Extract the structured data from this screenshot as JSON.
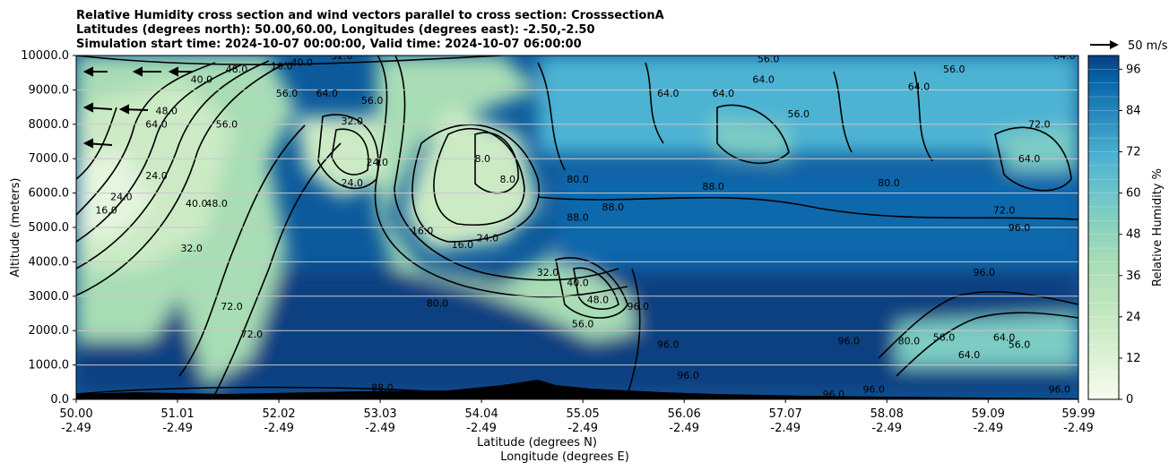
{
  "chart_data": {
    "type": "heatmap",
    "title_lines": [
      "Relative Humidity cross section and wind vectors parallel to cross section: CrosssectionA",
      "Latitudes (degrees north): 50.00,60.00, Longitudes (degrees east): -2.50,-2.50",
      "Simulation start time: 2024-10-07 00:00:00, Valid time: 2024-10-07 06:00:00"
    ],
    "ylabel": "Altitude (meters)",
    "xlabel_lines": [
      "Latitude (degrees N)",
      "Longitude (degrees E)"
    ],
    "colorbar_label": "Relative Humidity %",
    "quiver_key_label": "50 m/s",
    "ylim": [
      0,
      10000
    ],
    "xlim": [
      50.0,
      59.99
    ],
    "y_ticks": [
      0,
      1000,
      2000,
      3000,
      4000,
      5000,
      6000,
      7000,
      8000,
      9000,
      10000
    ],
    "y_tick_labels": [
      "0.0",
      "1000.0",
      "2000.0",
      "3000.0",
      "4000.0",
      "5000.0",
      "6000.0",
      "7000.0",
      "8000.0",
      "9000.0",
      "10000.0"
    ],
    "x_ticks": [
      50.0,
      51.01,
      52.02,
      53.03,
      54.04,
      55.05,
      56.06,
      57.07,
      58.08,
      59.09,
      59.99
    ],
    "x_tick_labels": [
      "50.00",
      "51.01",
      "52.02",
      "53.03",
      "54.04",
      "55.05",
      "56.06",
      "57.07",
      "58.08",
      "59.09",
      "59.99"
    ],
    "x_tick_sublabels": [
      "-2.49",
      "-2.49",
      "-2.49",
      "-2.49",
      "-2.49",
      "-2.49",
      "-2.49",
      "-2.49",
      "-2.49",
      "-2.49",
      "-2.49"
    ],
    "colorbar_ticks": [
      0,
      12,
      24,
      36,
      48,
      60,
      72,
      84,
      96
    ],
    "colorbar_tick_labels": [
      "0",
      "12",
      "24",
      "36",
      "48",
      "60",
      "72",
      "84",
      "96"
    ],
    "colorbar_levels": [
      0,
      4,
      8,
      12,
      16,
      20,
      24,
      28,
      32,
      36,
      40,
      44,
      48,
      52,
      56,
      60,
      64,
      68,
      72,
      76,
      80,
      84,
      88,
      92,
      96,
      100
    ],
    "colors": {
      "low": "#f7fcf0",
      "mid_low": "#ccebc5",
      "mid": "#7bccc4",
      "mid_high": "#2b8cbe",
      "high": "#084081",
      "terrain": "#000000"
    },
    "grid_horizontal": true,
    "contour_labels": [
      {
        "text": "16.0",
        "x": 50.3,
        "y": 5400
      },
      {
        "text": "24.0",
        "x": 50.45,
        "y": 5800
      },
      {
        "text": "24.0",
        "x": 50.8,
        "y": 6400
      },
      {
        "text": "32.0",
        "x": 51.15,
        "y": 4300
      },
      {
        "text": "40.0",
        "x": 51.2,
        "y": 5600
      },
      {
        "text": "48.0",
        "x": 51.4,
        "y": 5600
      },
      {
        "text": "56.0",
        "x": 51.5,
        "y": 7900
      },
      {
        "text": "64.0",
        "x": 50.8,
        "y": 7900
      },
      {
        "text": "48.0",
        "x": 50.9,
        "y": 8300
      },
      {
        "text": "40.0",
        "x": 51.25,
        "y": 9200
      },
      {
        "text": "48.0",
        "x": 51.6,
        "y": 9500
      },
      {
        "text": "16.0",
        "x": 52.05,
        "y": 9600
      },
      {
        "text": "40.0",
        "x": 52.25,
        "y": 9700
      },
      {
        "text": "32.0",
        "x": 52.65,
        "y": 9900
      },
      {
        "text": "56.0",
        "x": 52.1,
        "y": 8800
      },
      {
        "text": "64.0",
        "x": 52.5,
        "y": 8800
      },
      {
        "text": "56.0",
        "x": 52.95,
        "y": 8600
      },
      {
        "text": "24.0",
        "x": 52.75,
        "y": 6200
      },
      {
        "text": "24.0",
        "x": 53.0,
        "y": 6800
      },
      {
        "text": "32.0",
        "x": 52.75,
        "y": 8000
      },
      {
        "text": "8.0",
        "x": 54.05,
        "y": 6900
      },
      {
        "text": "8.0",
        "x": 54.3,
        "y": 6300
      },
      {
        "text": "16.0",
        "x": 53.45,
        "y": 4800
      },
      {
        "text": "16.0",
        "x": 53.85,
        "y": 4400
      },
      {
        "text": "24.0",
        "x": 54.1,
        "y": 4600
      },
      {
        "text": "32.0",
        "x": 54.7,
        "y": 3600
      },
      {
        "text": "40.0",
        "x": 55.0,
        "y": 3300
      },
      {
        "text": "48.0",
        "x": 55.2,
        "y": 2800
      },
      {
        "text": "56.0",
        "x": 55.05,
        "y": 2100
      },
      {
        "text": "80.0",
        "x": 53.6,
        "y": 2700
      },
      {
        "text": "88.0",
        "x": 55.0,
        "y": 5200
      },
      {
        "text": "88.0",
        "x": 55.35,
        "y": 5500
      },
      {
        "text": "80.0",
        "x": 55.0,
        "y": 6300
      },
      {
        "text": "72.0",
        "x": 51.55,
        "y": 2600
      },
      {
        "text": "72.0",
        "x": 51.75,
        "y": 1800
      },
      {
        "text": "88.0",
        "x": 53.05,
        "y": 250
      },
      {
        "text": "96.0",
        "x": 55.6,
        "y": 2600
      },
      {
        "text": "96.0",
        "x": 55.9,
        "y": 1500
      },
      {
        "text": "96.0",
        "x": 56.1,
        "y": 600
      },
      {
        "text": "56.0",
        "x": 56.9,
        "y": 9800
      },
      {
        "text": "64.0",
        "x": 55.9,
        "y": 8800
      },
      {
        "text": "64.0",
        "x": 56.45,
        "y": 8800
      },
      {
        "text": "64.0",
        "x": 56.85,
        "y": 9200
      },
      {
        "text": "56.0",
        "x": 57.2,
        "y": 8200
      },
      {
        "text": "88.0",
        "x": 56.35,
        "y": 6100
      },
      {
        "text": "80.0",
        "x": 58.1,
        "y": 6200
      },
      {
        "text": "72.0",
        "x": 59.25,
        "y": 5400
      },
      {
        "text": "96.0",
        "x": 59.4,
        "y": 4900
      },
      {
        "text": "96.0",
        "x": 59.05,
        "y": 3600
      },
      {
        "text": "96.0",
        "x": 57.7,
        "y": 1600
      },
      {
        "text": "96.0",
        "x": 57.95,
        "y": 200
      },
      {
        "text": "96.0",
        "x": 57.55,
        "y": 50
      },
      {
        "text": "64.0",
        "x": 58.9,
        "y": 1200
      },
      {
        "text": "64.0",
        "x": 59.25,
        "y": 1700
      },
      {
        "text": "56.0",
        "x": 58.65,
        "y": 1700
      },
      {
        "text": "56.0",
        "x": 59.4,
        "y": 1500
      },
      {
        "text": "80.0",
        "x": 58.3,
        "y": 1600
      },
      {
        "text": "96.0",
        "x": 59.8,
        "y": 200
      },
      {
        "text": "64.0",
        "x": 59.85,
        "y": 9900
      },
      {
        "text": "72.0",
        "x": 59.6,
        "y": 7900
      },
      {
        "text": "64.0",
        "x": 59.5,
        "y": 6900
      },
      {
        "text": "56.0",
        "x": 58.75,
        "y": 9500
      },
      {
        "text": "64.0",
        "x": 58.4,
        "y": 9000
      }
    ]
  }
}
